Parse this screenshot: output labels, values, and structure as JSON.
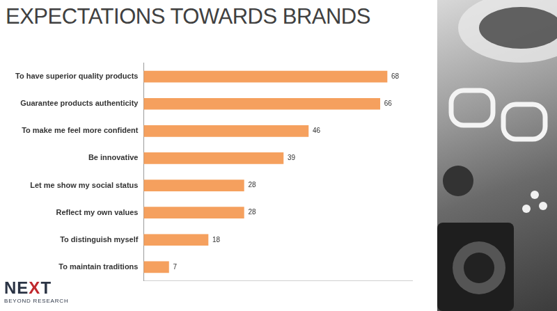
{
  "chart_data": {
    "type": "bar",
    "title": "EXPECTATIONS TOWARDS BRANDS",
    "orientation": "horizontal",
    "categories": [
      "To have superior quality products",
      "Guarantee products authenticity",
      "To make me feel more confident",
      "Be innovative",
      "Let me show my social status",
      "Reflect my own values",
      "To distinguish myself",
      "To maintain traditions"
    ],
    "values": [
      68,
      66,
      46,
      39,
      28,
      28,
      18,
      7
    ],
    "color": "#f5a05e",
    "xlim": [
      0,
      75
    ],
    "data_labels": true,
    "tick_labels": "y",
    "grid": false
  },
  "logo": {
    "name": "NEXT",
    "tagline": "BEYOND RESEARCH"
  }
}
